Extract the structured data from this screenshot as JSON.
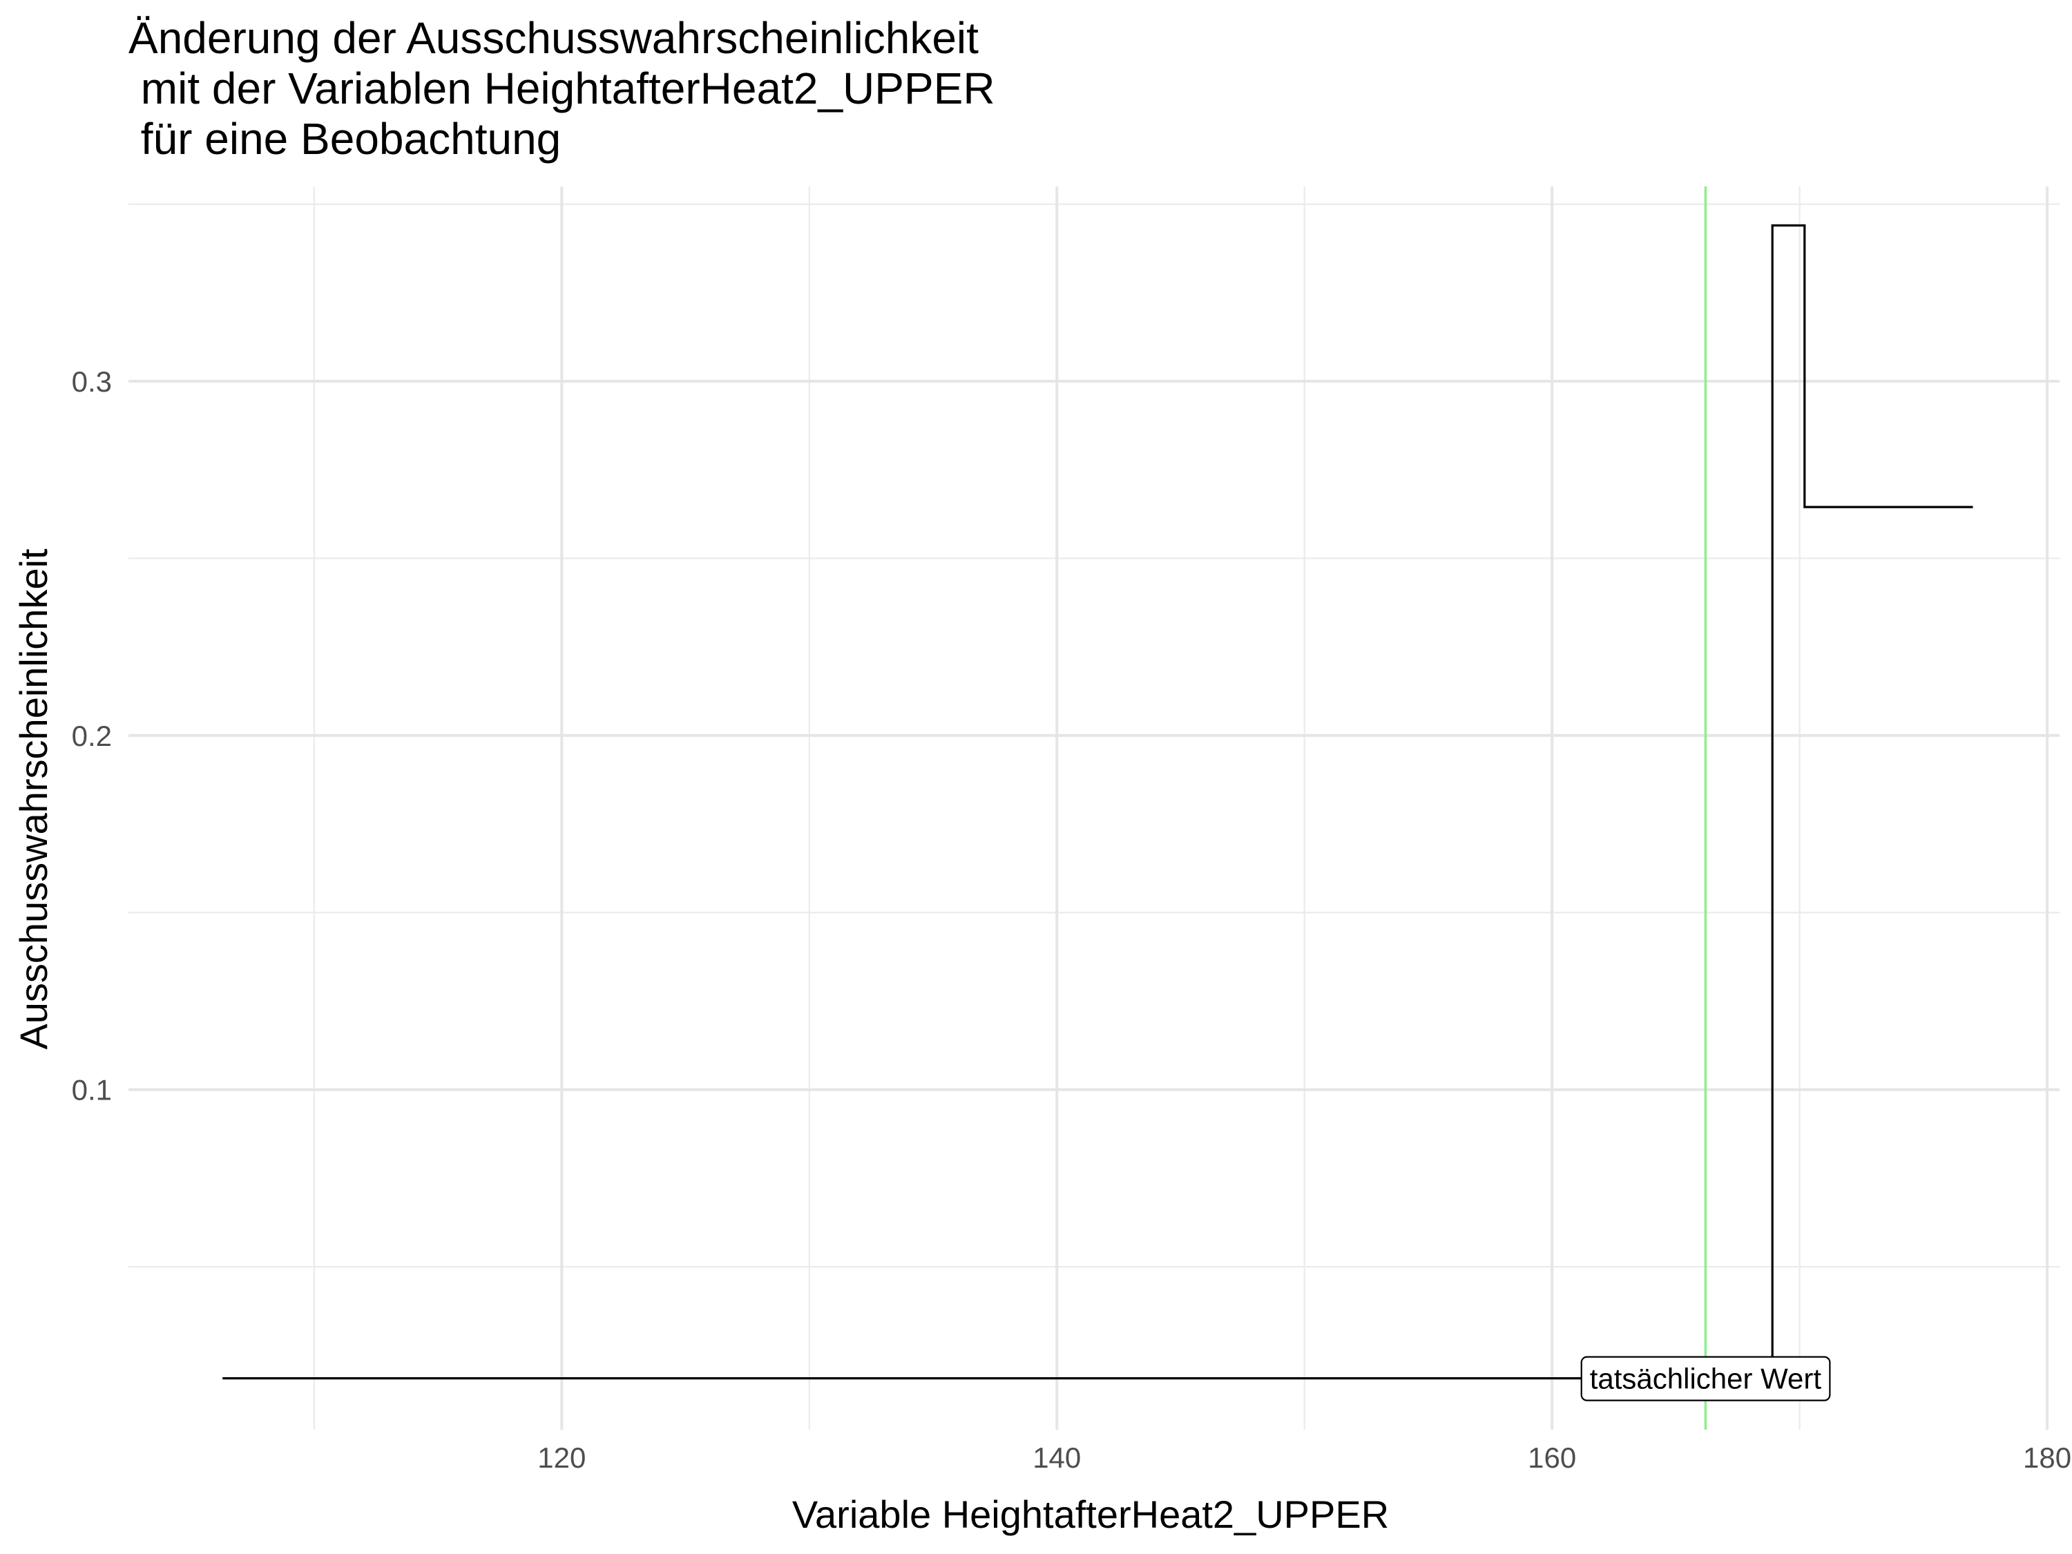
{
  "chart_data": {
    "type": "line",
    "title_lines": [
      "Änderung der Ausschusswahrscheinlichkeit",
      " mit der Variablen HeightafterHeat2_UPPER",
      " für eine Beobachtung"
    ],
    "xlabel": "Variable HeightafterHeat2_UPPER",
    "ylabel": "Ausschusswahrscheinlichkeit",
    "xlim": [
      102.5,
      180.5
    ],
    "ylim": [
      0.004,
      0.355
    ],
    "x_ticks": [
      120,
      140,
      160,
      180
    ],
    "x_tick_labels": [
      "120",
      "140",
      "160",
      "180"
    ],
    "x_minor_ticks": [
      110,
      130,
      150,
      170
    ],
    "y_ticks": [
      0.1,
      0.2,
      0.3
    ],
    "y_tick_labels": [
      "0.1",
      "0.2",
      "0.3"
    ],
    "y_minor_ticks": [
      0.05,
      0.15,
      0.25,
      0.35
    ],
    "grid": true,
    "line_color": "#000000",
    "series": [
      {
        "x": [
          106.3,
          168.9,
          168.9,
          170.2,
          170.2,
          177
        ],
        "y": [
          0.0185,
          0.0185,
          0.344,
          0.344,
          0.2645,
          0.2645
        ]
      }
    ],
    "reference_line": {
      "x": 166.2,
      "color": "#90ee90"
    },
    "annotation": {
      "text": "tatsächlicher Wert",
      "x": 166.2,
      "y": 0.0185
    }
  }
}
